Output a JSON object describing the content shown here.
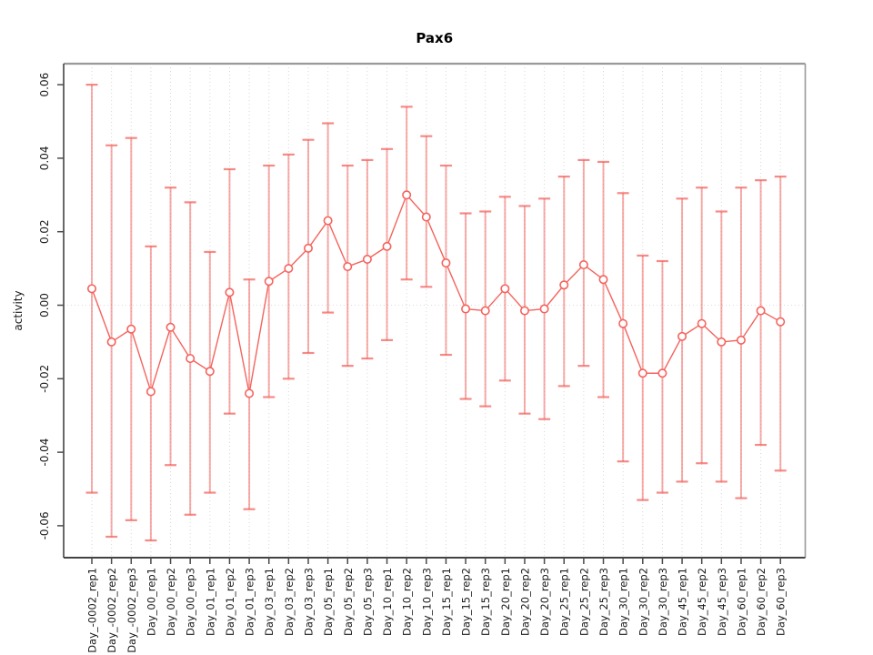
{
  "title": "Pax6",
  "chart_data": {
    "type": "line",
    "title": "Pax6",
    "xlabel": "",
    "ylabel": "activity",
    "ylim": [
      -0.068,
      0.066
    ],
    "grid": "vertical-dotted-per-category",
    "zero_line": true,
    "legend_position": "none",
    "point_style": "open-circle",
    "error_bars": true,
    "categories": [
      "Day_-0002_rep1",
      "Day_-0002_rep2",
      "Day_-0002_rep3",
      "Day_00_rep1",
      "Day_00_rep2",
      "Day_00_rep3",
      "Day_01_rep1",
      "Day_01_rep2",
      "Day_01_rep3",
      "Day_03_rep1",
      "Day_03_rep2",
      "Day_03_rep3",
      "Day_05_rep1",
      "Day_05_rep2",
      "Day_05_rep3",
      "Day_10_rep1",
      "Day_10_rep2",
      "Day_10_rep3",
      "Day_15_rep1",
      "Day_15_rep2",
      "Day_15_rep3",
      "Day_20_rep1",
      "Day_20_rep2",
      "Day_20_rep3",
      "Day_25_rep1",
      "Day_25_rep2",
      "Day_25_rep3",
      "Day_30_rep1",
      "Day_30_rep2",
      "Day_30_rep3",
      "Day_45_rep1",
      "Day_45_rep2",
      "Day_45_rep3",
      "Day_60_rep1",
      "Day_60_rep2",
      "Day_60_rep3"
    ],
    "series": [
      {
        "name": "activity",
        "values": [
          0.0045,
          -0.01,
          -0.0065,
          -0.0235,
          -0.006,
          -0.0145,
          -0.018,
          0.0035,
          -0.024,
          0.0065,
          0.01,
          0.0155,
          0.023,
          0.0105,
          0.0125,
          0.016,
          0.03,
          0.024,
          0.0115,
          -0.001,
          -0.0015,
          0.0045,
          -0.0015,
          -0.001,
          0.0055,
          0.011,
          0.007,
          -0.005,
          -0.0185,
          -0.0185,
          -0.0085,
          -0.005,
          -0.01,
          -0.0095,
          -0.0015,
          -0.0045
        ]
      }
    ],
    "error_high": [
      0.06,
      0.0435,
      0.0455,
      0.016,
      0.032,
      0.028,
      0.0145,
      0.037,
      0.007,
      0.038,
      0.041,
      0.045,
      0.0495,
      0.038,
      0.0395,
      0.0425,
      0.054,
      0.046,
      0.038,
      0.025,
      0.0255,
      0.0295,
      0.027,
      0.029,
      0.035,
      0.0395,
      0.039,
      0.0305,
      0.0135,
      0.012,
      0.029,
      0.032,
      0.0255,
      0.032,
      0.034,
      0.035
    ],
    "error_low": [
      -0.051,
      -0.063,
      -0.0585,
      -0.064,
      -0.0435,
      -0.057,
      -0.051,
      -0.0295,
      -0.0555,
      -0.025,
      -0.02,
      -0.013,
      -0.002,
      -0.0165,
      -0.0145,
      -0.0095,
      0.007,
      0.005,
      -0.0135,
      -0.0255,
      -0.0275,
      -0.0205,
      -0.0295,
      -0.031,
      -0.022,
      -0.0165,
      -0.025,
      -0.0425,
      -0.053,
      -0.051,
      -0.048,
      -0.043,
      -0.048,
      -0.0525,
      -0.038,
      -0.045
    ],
    "y_ticks": [
      0.06,
      0.04,
      0.02,
      0.0,
      -0.02,
      -0.04,
      -0.06
    ],
    "y_tick_labels": [
      "0.06",
      "0.04",
      "0.02",
      "0.00",
      "-0.02",
      "-0.04",
      "-0.06"
    ]
  },
  "colors": {
    "point_line": "#f4635d",
    "error_bar": "rgba(242,88,82,0.50)",
    "error_cap": "rgba(242,88,82,0.70)",
    "grid": "#d7d7d7",
    "zero_line": "#dcdcdc",
    "box_light": "#9a9a9a",
    "box_dark": "#434343",
    "tick": "#4a4a4a",
    "text": "#1a1a1a",
    "title_text": "#000000"
  }
}
